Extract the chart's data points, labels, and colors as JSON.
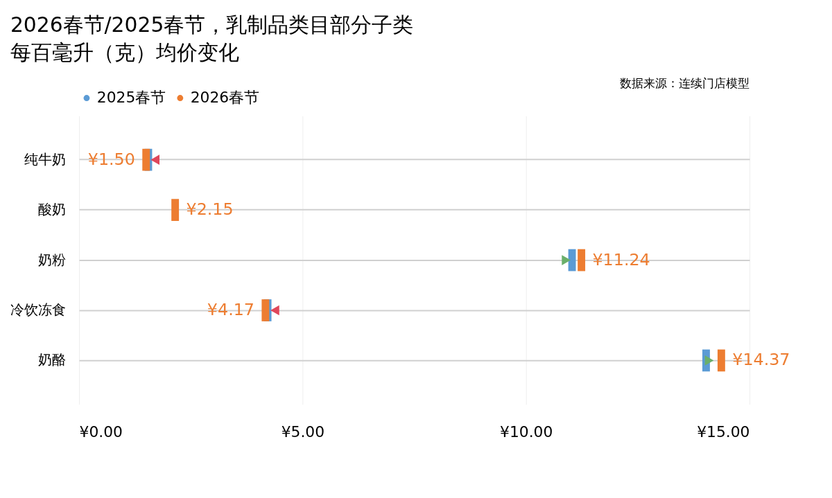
{
  "chart_data": {
    "type": "scatter",
    "orientation": "horizontal",
    "title": "2026春节/2025春节，乳制品类目部分子类",
    "subtitle": "每百毫升（克）均价变化",
    "annotations": [
      "数据来源：连续门店模型"
    ],
    "categories": [
      "纯牛奶",
      "酸奶",
      "奶粉",
      "冷饮冻食",
      "奶酪"
    ],
    "series": [
      {
        "name": "2025春节",
        "color": "#5b9bd5",
        "values": [
          1.55,
          null,
          11.03,
          4.22,
          14.03
        ]
      },
      {
        "name": "2026春节",
        "color": "#ed7d31",
        "values": [
          1.5,
          2.15,
          11.24,
          4.17,
          14.37
        ],
        "value_labels": [
          "¥1.50",
          "¥2.15",
          "¥11.24",
          "¥4.17",
          "¥14.37"
        ]
      },
      {
        "marker": "triangle",
        "colors": [
          "#e0475b",
          "#e0475b",
          "#6aaf6a",
          "#e0475b",
          "#6aaf6a"
        ],
        "values": [
          1.7,
          null,
          10.9,
          4.38,
          14.1
        ]
      }
    ],
    "xlim": [
      0,
      15
    ],
    "xticks": [
      {
        "value": 0,
        "label": "¥0.00"
      },
      {
        "value": 5,
        "label": "¥5.00"
      },
      {
        "value": 10,
        "label": "¥10.00"
      },
      {
        "value": 15,
        "label": "¥15.00"
      }
    ],
    "grid": true,
    "legend": "top"
  }
}
